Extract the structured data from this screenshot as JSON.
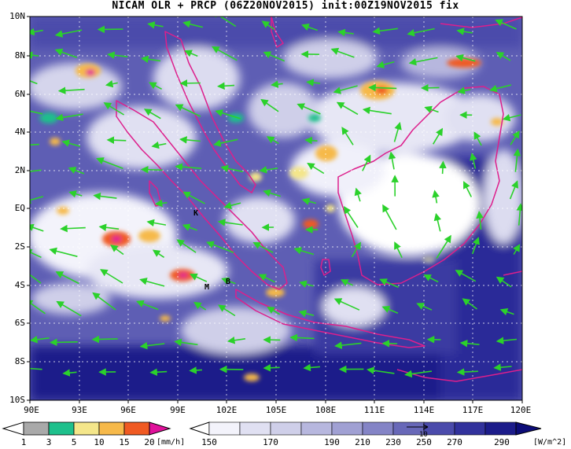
{
  "title": "NICAM OLR + PRCP (06Z20NOV2015) init:00Z19NOV2015 fix",
  "lat_ticks": [
    "10N",
    "8N",
    "6N",
    "4N",
    "2N",
    "EQ",
    "2S",
    "4S",
    "6S",
    "8S",
    "10S"
  ],
  "lon_ticks": [
    "90E",
    "93E",
    "96E",
    "99E",
    "102E",
    "105E",
    "108E",
    "111E",
    "114E",
    "117E",
    "120E"
  ],
  "station_markers": [
    "K",
    "M",
    "B"
  ],
  "prcp_colorbar": {
    "labels": [
      "1",
      "3",
      "5",
      "10",
      "15",
      "20"
    ],
    "unit": "[mm/h]",
    "colors": [
      "#a9a9a9",
      "#1ec08c",
      "#f4e68a",
      "#f6b94a",
      "#f05a22",
      "#e0119b"
    ]
  },
  "olr_colorbar": {
    "labels": [
      "150",
      "170",
      "190",
      "210",
      "230",
      "250",
      "270",
      "290"
    ],
    "unit": "[W/m^2]",
    "vector_ref": "10",
    "colors": [
      "#f3f3fb",
      "#e0e0f2",
      "#cfcfe9",
      "#b7b7de",
      "#a0a0d3",
      "#8484c6",
      "#6868b8",
      "#4b4bab",
      "#32329c",
      "#1c1c8a",
      "#0c0c78"
    ]
  },
  "colors": {
    "coast": "#dd1f8c",
    "wind": "#2bd12b",
    "grid": "#ffffff"
  }
}
